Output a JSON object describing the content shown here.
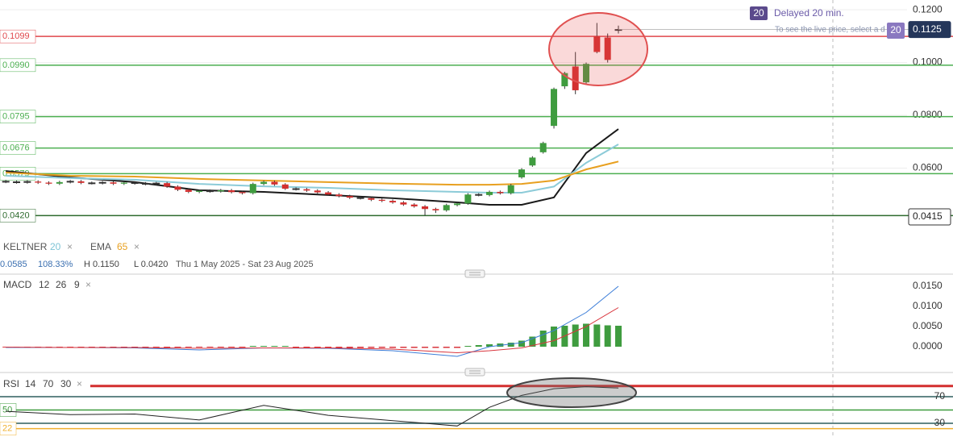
{
  "header": {
    "badge": "20",
    "delay": "Delayed 20 min.",
    "notice": "To see the live price, select a d",
    "badge2": "20"
  },
  "chart_data": [
    {
      "type": "candlestick",
      "open": [
        0.055,
        0.0548,
        0.0546,
        0.0549,
        0.0545,
        0.0541,
        0.0547,
        0.055,
        0.0544,
        0.0543,
        0.0546,
        0.0541,
        0.0545,
        0.0542,
        0.054,
        0.0543,
        0.053,
        0.0518,
        0.051,
        0.0514,
        0.0512,
        0.0516,
        0.0509,
        0.0505,
        0.054,
        0.0548,
        0.0538,
        0.0522,
        0.052,
        0.0515,
        0.0508,
        0.05,
        0.0494,
        0.0488,
        0.0486,
        0.048,
        0.0476,
        0.047,
        0.0462,
        0.0455,
        0.0445,
        0.044,
        0.046,
        0.0466,
        0.05,
        0.0498,
        0.051,
        0.0505,
        0.0565,
        0.061,
        0.066,
        0.076,
        0.091,
        0.0985,
        0.0925,
        0.11,
        0.1095,
        0.1125
      ],
      "high": [
        0.0555,
        0.0553,
        0.0554,
        0.0554,
        0.055,
        0.0552,
        0.0555,
        0.0555,
        0.0549,
        0.0551,
        0.0551,
        0.055,
        0.055,
        0.0547,
        0.0548,
        0.0548,
        0.0535,
        0.0523,
        0.0519,
        0.0519,
        0.0521,
        0.0521,
        0.0514,
        0.0545,
        0.0553,
        0.0553,
        0.0543,
        0.0527,
        0.0525,
        0.052,
        0.0513,
        0.0505,
        0.0499,
        0.0493,
        0.0491,
        0.0485,
        0.0481,
        0.0475,
        0.0467,
        0.046,
        0.045,
        0.0465,
        0.0471,
        0.0505,
        0.0505,
        0.0515,
        0.0515,
        0.054,
        0.06,
        0.0645,
        0.07,
        0.0905,
        0.0965,
        0.104,
        0.1,
        0.115,
        0.111,
        0.114
      ],
      "low": [
        0.0543,
        0.0541,
        0.0541,
        0.054,
        0.0536,
        0.0536,
        0.0542,
        0.0539,
        0.0538,
        0.0538,
        0.0536,
        0.0536,
        0.0537,
        0.0535,
        0.0535,
        0.0525,
        0.0513,
        0.0505,
        0.0505,
        0.0507,
        0.0507,
        0.0504,
        0.05,
        0.05,
        0.0535,
        0.0533,
        0.0517,
        0.0515,
        0.051,
        0.0503,
        0.0495,
        0.0489,
        0.0483,
        0.0481,
        0.0475,
        0.0471,
        0.0465,
        0.0457,
        0.045,
        0.042,
        0.043,
        0.0435,
        0.0455,
        0.0461,
        0.0493,
        0.0493,
        0.05,
        0.05,
        0.056,
        0.0605,
        0.0655,
        0.075,
        0.09,
        0.088,
        0.0915,
        0.1035,
        0.1,
        0.111
      ],
      "close": [
        0.0548,
        0.0546,
        0.0549,
        0.0545,
        0.0541,
        0.0547,
        0.055,
        0.0544,
        0.0543,
        0.0546,
        0.0541,
        0.0545,
        0.0542,
        0.054,
        0.0543,
        0.053,
        0.0518,
        0.051,
        0.0514,
        0.0512,
        0.0516,
        0.0509,
        0.0505,
        0.054,
        0.0548,
        0.0538,
        0.0522,
        0.052,
        0.0515,
        0.0508,
        0.05,
        0.0494,
        0.0488,
        0.0486,
        0.048,
        0.0476,
        0.047,
        0.0462,
        0.0455,
        0.0445,
        0.044,
        0.046,
        0.0466,
        0.05,
        0.0498,
        0.051,
        0.0505,
        0.0535,
        0.0595,
        0.064,
        0.0695,
        0.09,
        0.096,
        0.0895,
        0.0995,
        0.104,
        0.101,
        0.1125
      ],
      "up_color": "#3f9c3f",
      "down_color": "#d32f2f",
      "ylim": [
        0.0351,
        0.1237
      ],
      "yticks": [
        {
          "value": 0.12,
          "label": "0.1200"
        },
        {
          "value": 0.1,
          "label": "0.1000"
        },
        {
          "value": 0.08,
          "label": "0.0800"
        },
        {
          "value": 0.06,
          "label": "0.0600"
        }
      ],
      "grid": true,
      "hlines": [
        {
          "value": 0.1099,
          "color": "#e0474c",
          "labeled": true
        },
        {
          "value": 0.099,
          "label": "0.0990",
          "color": "#4caf50",
          "labeled": true
        },
        {
          "value": 0.0795,
          "color": "#4caf50",
          "labeled": true
        },
        {
          "value": 0.0676,
          "color": "#4caf50",
          "labeled": true
        },
        {
          "value": 0.0579,
          "color": "#4caf50",
          "labeled": true
        },
        {
          "value": 0.042,
          "label": "0.0420",
          "color": "#2e6b2e",
          "labeled": true
        }
      ],
      "overlays": [
        {
          "color": "#1a1a1a",
          "x": [
            0,
            6,
            12,
            18,
            24,
            30,
            36,
            42,
            45,
            48,
            51,
            54,
            57
          ],
          "values": [
            0.0589,
            0.0565,
            0.0547,
            0.0516,
            0.051,
            0.0498,
            0.0486,
            0.047,
            0.0461,
            0.0461,
            0.0489,
            0.0657,
            0.0748
          ]
        },
        {
          "color": "#8ccbd8",
          "x": [
            0,
            6,
            12,
            18,
            24,
            30,
            36,
            42,
            45,
            48,
            51,
            54,
            57
          ],
          "values": [
            0.0571,
            0.0562,
            0.0556,
            0.054,
            0.0531,
            0.0525,
            0.0516,
            0.051,
            0.0507,
            0.0507,
            0.053,
            0.062,
            0.069
          ]
        },
        {
          "color": "#e8a020",
          "x": [
            0,
            6,
            12,
            18,
            24,
            30,
            36,
            42,
            45,
            48,
            51,
            54,
            57
          ],
          "values": [
            0.0583,
            0.0571,
            0.0568,
            0.0559,
            0.0553,
            0.0547,
            0.0541,
            0.0537,
            0.0537,
            0.054,
            0.0553,
            0.0595,
            0.0625
          ]
        }
      ],
      "price_tags": [
        {
          "value": 0.0415,
          "style": "outline"
        },
        {
          "value": 0.1125,
          "style": "filled"
        }
      ],
      "legend": [
        {
          "name": "KELTNER",
          "param": 20,
          "color": "#7fc4d6"
        },
        {
          "name": "EMA",
          "param": 65,
          "color": "#e8a020"
        }
      ],
      "close_icon": "×",
      "stats": [
        "0.0585",
        "108.33%",
        "H 0.1150",
        "L 0.0420",
        "Thu 1 May 2025 - Sat 23 Aug 2025"
      ]
    },
    {
      "type": "macd",
      "name": "MACD",
      "params": [
        12,
        26,
        9
      ],
      "close_icon": "×",
      "x": [
        0,
        6,
        12,
        18,
        24,
        30,
        36,
        42,
        45,
        48,
        51,
        54,
        57
      ],
      "macd": [
        -0.0002,
        -0.0002,
        -0.0003,
        -0.0008,
        -0.0003,
        -0.0004,
        -0.001,
        -0.0024,
        0,
        0.001,
        0.004,
        0.0085,
        0.015
      ],
      "signal": [
        -0.0001,
        -0.0002,
        -0.0002,
        -0.0004,
        -0.0003,
        -0.0003,
        -0.0006,
        -0.0015,
        -0.001,
        -0.0003,
        0.0015,
        0.005,
        0.0097
      ],
      "histogram": [
        -0.0002,
        -0.0002,
        -0.0002,
        -0.0002,
        -0.0002,
        -0.0002,
        -0.0002,
        -0.0002,
        -0.0002,
        -0.0002,
        -0.0002,
        -0.0002,
        -0.0002,
        -0.0002,
        -0.0002,
        -0.0002,
        -0.0002,
        -0.0002,
        -0.0002,
        -0.0002,
        -0.0002,
        -0.0002,
        -0.0002,
        0.0002,
        0.0002,
        0.0002,
        0.0002,
        -0.0003,
        -0.0003,
        -0.0003,
        -0.0003,
        -0.0003,
        -0.0003,
        -0.0003,
        -0.0003,
        -0.0003,
        -0.0003,
        -0.0003,
        -0.0003,
        -0.0003,
        -0.0003,
        -0.0003,
        -0.0003,
        0.0002,
        0.0004,
        0.0006,
        0.0008,
        0.001,
        0.0015,
        0.0025,
        0.004,
        0.005,
        0.0052,
        0.0055,
        0.0057,
        0.0055,
        0.0053,
        0.0052
      ],
      "macd_color": "#3b7dd8",
      "signal_color": "#d9363e",
      "up_color": "#3f9c3f",
      "down_color": "#d9363e",
      "ylim": [
        -0.006,
        0.0176
      ],
      "yticks": [
        {
          "value": 0.015,
          "label": "0.0150"
        },
        {
          "value": 0.01,
          "label": "0.0100"
        },
        {
          "value": 0.005,
          "label": "0.0050"
        },
        {
          "value": 0,
          "label": "0.0000"
        }
      ]
    },
    {
      "type": "rsi",
      "name": "RSI",
      "params": [
        14,
        70,
        30
      ],
      "close_icon": "×",
      "x": [
        0,
        6,
        12,
        18,
        24,
        30,
        36,
        42,
        45,
        48,
        51,
        54,
        57
      ],
      "values": [
        48,
        43,
        44,
        35,
        57,
        42,
        34,
        26,
        54,
        72,
        82,
        85,
        83
      ],
      "color": "#222222",
      "ylim": [
        9.4,
        101.5
      ],
      "yticks": [
        70,
        30
      ],
      "hlines": [
        {
          "value": 86,
          "color": "#d32f2f",
          "labeled": false
        },
        {
          "value": 70,
          "color": "#2e5e5e",
          "labeled": false
        },
        {
          "value": 50,
          "color": "#3c9a3c",
          "labeled": true
        },
        {
          "value": 30,
          "color": "#2e5e5e",
          "labeled": false
        },
        {
          "value": 22,
          "color": "#f0b030",
          "labeled": true
        }
      ]
    }
  ]
}
